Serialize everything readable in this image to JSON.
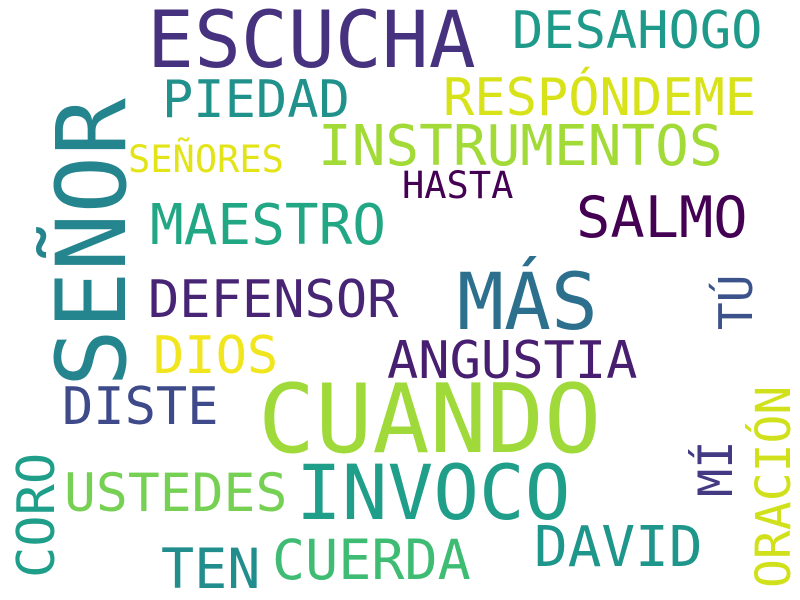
{
  "words": [
    {
      "text": "ESCUCHA",
      "color": "#46327e"
    },
    {
      "text": "DESAHOGO",
      "color": "#1f9a8a"
    },
    {
      "text": "PIEDAD",
      "color": "#21918c"
    },
    {
      "text": "RESPÓNDEME",
      "color": "#d8e219"
    },
    {
      "text": "INSTRUMENTOS",
      "color": "#a2da37"
    },
    {
      "text": "SEÑORES",
      "color": "#e3e418"
    },
    {
      "text": "HASTA",
      "color": "#440154"
    },
    {
      "text": "SEÑOR",
      "color": "#25858e"
    },
    {
      "text": "MAESTRO",
      "color": "#22a785"
    },
    {
      "text": "SALMO",
      "color": "#440154"
    },
    {
      "text": "DEFENSOR",
      "color": "#482475"
    },
    {
      "text": "MÁS",
      "color": "#2d708e"
    },
    {
      "text": "TÚ",
      "color": "#3b528b"
    },
    {
      "text": "DIOS",
      "color": "#f1e51d"
    },
    {
      "text": "ANGUSTIA",
      "color": "#481f70"
    },
    {
      "text": "DISTE",
      "color": "#3e4a89"
    },
    {
      "text": "CUANDO",
      "color": "#9fda3a"
    },
    {
      "text": "CORO",
      "color": "#1f9e89"
    },
    {
      "text": "ORACIÓN",
      "color": "#d0e11c"
    },
    {
      "text": "MÍ",
      "color": "#443983"
    },
    {
      "text": "USTEDES",
      "color": "#75d054"
    },
    {
      "text": "INVOCO",
      "color": "#1f9e89"
    },
    {
      "text": "DAVID",
      "color": "#1f968b"
    },
    {
      "text": "CUERDA",
      "color": "#3fbc73"
    },
    {
      "text": "TEN",
      "color": "#228d8d"
    }
  ]
}
